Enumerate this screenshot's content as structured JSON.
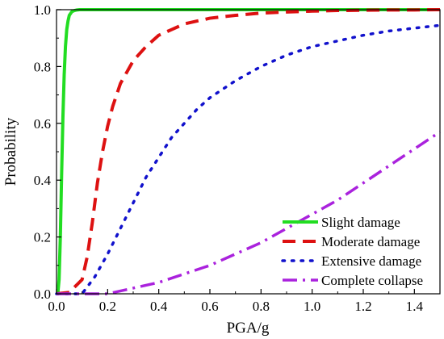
{
  "chart_data": {
    "type": "line",
    "xlabel": "PGA/g",
    "ylabel": "Probability",
    "xlim": [
      0,
      1.5
    ],
    "ylim": [
      0,
      1.0
    ],
    "x_ticks": [
      0.0,
      0.2,
      0.4,
      0.6,
      0.8,
      1.0,
      1.2,
      1.4
    ],
    "x_tick_labels": [
      "0.0",
      "0.2",
      "0.4",
      "0.6",
      "0.8",
      "1.0",
      "1.2",
      "1.4"
    ],
    "y_ticks": [
      0.0,
      0.2,
      0.4,
      0.6,
      0.8,
      1.0
    ],
    "y_tick_labels": [
      "0.0",
      "0.2",
      "0.4",
      "0.6",
      "0.8",
      "1.0"
    ],
    "grid": false,
    "legend_position": "bottom-right",
    "series": [
      {
        "name": "Slight damage",
        "color": "#22dd22",
        "style": "solid",
        "x": [
          0.0,
          0.005,
          0.01,
          0.015,
          0.02,
          0.025,
          0.03,
          0.035,
          0.04,
          0.045,
          0.05,
          0.06,
          0.07,
          0.08,
          0.09,
          0.1,
          0.12,
          0.15,
          0.2,
          0.3,
          0.5,
          1.0,
          1.5
        ],
        "y": [
          0.0,
          0.0,
          0.05,
          0.2,
          0.42,
          0.62,
          0.77,
          0.87,
          0.93,
          0.96,
          0.98,
          0.993,
          0.997,
          0.999,
          1.0,
          1.0,
          1.0,
          1.0,
          1.0,
          1.0,
          1.0,
          1.0,
          1.0
        ]
      },
      {
        "name": "Moderate damage",
        "color": "#dd1111",
        "style": "dash",
        "x": [
          0.0,
          0.05,
          0.1,
          0.12,
          0.14,
          0.16,
          0.18,
          0.2,
          0.22,
          0.25,
          0.3,
          0.35,
          0.4,
          0.45,
          0.5,
          0.6,
          0.7,
          0.8,
          0.9,
          1.0,
          1.1,
          1.2,
          1.3,
          1.4,
          1.5
        ],
        "y": [
          0.0,
          0.005,
          0.05,
          0.13,
          0.25,
          0.39,
          0.5,
          0.59,
          0.66,
          0.74,
          0.82,
          0.87,
          0.91,
          0.93,
          0.95,
          0.97,
          0.98,
          0.988,
          0.992,
          0.995,
          0.997,
          0.998,
          0.999,
          0.999,
          1.0
        ]
      },
      {
        "name": "Extensive damage",
        "color": "#1111cc",
        "style": "dot",
        "x": [
          0.0,
          0.1,
          0.15,
          0.2,
          0.25,
          0.3,
          0.35,
          0.4,
          0.45,
          0.5,
          0.55,
          0.6,
          0.7,
          0.8,
          0.9,
          1.0,
          1.1,
          1.2,
          1.3,
          1.4,
          1.5
        ],
        "y": [
          0.0,
          0.0,
          0.06,
          0.14,
          0.23,
          0.32,
          0.41,
          0.48,
          0.55,
          0.6,
          0.65,
          0.69,
          0.75,
          0.8,
          0.84,
          0.87,
          0.89,
          0.91,
          0.925,
          0.935,
          0.945
        ]
      },
      {
        "name": "Complete collapse",
        "color": "#aa22dd",
        "style": "dashdot",
        "x": [
          0.0,
          0.2,
          0.3,
          0.4,
          0.5,
          0.6,
          0.7,
          0.8,
          0.9,
          1.0,
          1.1,
          1.2,
          1.3,
          1.4,
          1.5
        ],
        "y": [
          0.0,
          0.0,
          0.02,
          0.04,
          0.07,
          0.1,
          0.14,
          0.18,
          0.23,
          0.28,
          0.33,
          0.39,
          0.45,
          0.51,
          0.57
        ]
      }
    ]
  }
}
